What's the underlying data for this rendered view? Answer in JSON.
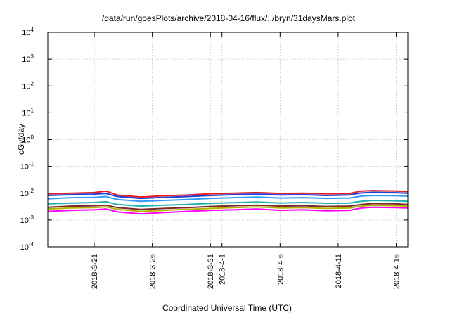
{
  "chart_data": {
    "type": "line",
    "title": "/data/run/goesPlots/archive/2018-04-16/flux/../bryn/31daysMars.plot",
    "xlabel": "Coordinated Universal Time (UTC)",
    "ylabel": "cGy/day",
    "yscale": "log",
    "ylim": [
      0.0001,
      10000
    ],
    "yticks": [
      {
        "base": "10",
        "exp": "4",
        "value": 10000
      },
      {
        "base": "10",
        "exp": "3",
        "value": 1000
      },
      {
        "base": "10",
        "exp": "2",
        "value": 100
      },
      {
        "base": "10",
        "exp": "1",
        "value": 10
      },
      {
        "base": "10",
        "exp": "0",
        "value": 1
      },
      {
        "base": "10",
        "exp": "-1",
        "value": 0.1
      },
      {
        "base": "10",
        "exp": "-2",
        "value": 0.01
      },
      {
        "base": "10",
        "exp": "-3",
        "value": 0.001
      },
      {
        "base": "10",
        "exp": "-4",
        "value": 0.0001
      }
    ],
    "xlim": [
      "2018-03-17",
      "2018-04-17"
    ],
    "xticks": [
      {
        "date": "2018-03-21",
        "label": "2018-3-21"
      },
      {
        "date": "2018-03-26",
        "label": "2018-3-26"
      },
      {
        "date": "2018-03-31",
        "label": "2018-3-31"
      },
      {
        "date": "2018-04-01",
        "label": "2018-4-1"
      },
      {
        "date": "2018-04-06",
        "label": "2018-4-6"
      },
      {
        "date": "2018-04-11",
        "label": "2018-4-11"
      },
      {
        "date": "2018-04-16",
        "label": "2018-4-16"
      }
    ],
    "grid": true,
    "x": [
      "2018-03-17",
      "2018-03-19",
      "2018-03-21",
      "2018-03-22",
      "2018-03-23",
      "2018-03-25",
      "2018-03-27",
      "2018-03-29",
      "2018-03-31",
      "2018-04-02",
      "2018-04-04",
      "2018-04-06",
      "2018-04-08",
      "2018-04-10",
      "2018-04-12",
      "2018-04-13",
      "2018-04-14",
      "2018-04-16",
      "2018-04-17"
    ],
    "series": [
      {
        "color": "#e41a1c",
        "values": [
          0.0095,
          0.01,
          0.0105,
          0.012,
          0.0085,
          0.0072,
          0.008,
          0.0085,
          0.0095,
          0.01,
          0.0105,
          0.0098,
          0.01,
          0.0095,
          0.0098,
          0.012,
          0.0125,
          0.012,
          0.0115
        ]
      },
      {
        "color": "#1f3fd8",
        "values": [
          0.0082,
          0.0088,
          0.0092,
          0.0098,
          0.0075,
          0.0064,
          0.007,
          0.0075,
          0.0082,
          0.0088,
          0.0092,
          0.0086,
          0.0088,
          0.0082,
          0.0086,
          0.0102,
          0.0108,
          0.0104,
          0.01
        ]
      },
      {
        "color": "#3399ff",
        "values": [
          0.0062,
          0.0068,
          0.007,
          0.0075,
          0.0058,
          0.005,
          0.0054,
          0.0058,
          0.0064,
          0.0068,
          0.0072,
          0.0066,
          0.0068,
          0.0064,
          0.0066,
          0.0078,
          0.0082,
          0.008,
          0.0078
        ]
      },
      {
        "color": "#20b2aa",
        "values": [
          0.004,
          0.0043,
          0.0045,
          0.0048,
          0.0038,
          0.0033,
          0.0036,
          0.0038,
          0.0042,
          0.0044,
          0.0047,
          0.0043,
          0.0045,
          0.0042,
          0.0043,
          0.005,
          0.0054,
          0.0052,
          0.005
        ]
      },
      {
        "color": "#7b2a2a",
        "values": [
          0.003,
          0.0033,
          0.0034,
          0.0036,
          0.0029,
          0.0025,
          0.0027,
          0.0029,
          0.0032,
          0.0034,
          0.0036,
          0.0033,
          0.0034,
          0.0032,
          0.0033,
          0.0038,
          0.0041,
          0.004,
          0.0038
        ]
      },
      {
        "color": "#b5b200",
        "values": [
          0.0026,
          0.0028,
          0.0029,
          0.0031,
          0.0025,
          0.0021,
          0.0023,
          0.0025,
          0.0027,
          0.0029,
          0.0031,
          0.0028,
          0.0029,
          0.0027,
          0.0028,
          0.0033,
          0.0035,
          0.0034,
          0.0033
        ]
      },
      {
        "color": "#ff00ff",
        "values": [
          0.0021,
          0.0023,
          0.0024,
          0.0026,
          0.002,
          0.0017,
          0.0019,
          0.0021,
          0.0023,
          0.0024,
          0.0026,
          0.0023,
          0.0024,
          0.0022,
          0.0023,
          0.0028,
          0.003,
          0.0029,
          0.0028
        ]
      }
    ]
  }
}
